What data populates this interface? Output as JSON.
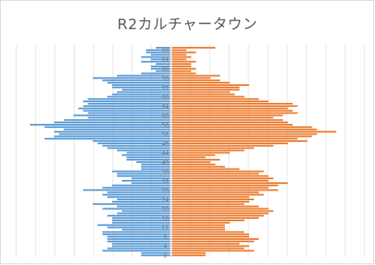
{
  "chart_data": {
    "type": "bar",
    "orientation": "horizontal",
    "layout": "population-pyramid",
    "title": "R2カルチャータウン",
    "grid": true,
    "xlim": [
      -32,
      40
    ],
    "ylim": [
      0,
      91
    ],
    "y_ticks": [
      "0",
      "4",
      "8",
      "12",
      "16",
      "20",
      "24",
      "28",
      "32",
      "36",
      "40",
      "44",
      "48",
      "52",
      "56",
      "60",
      "64",
      "68",
      "72",
      "76",
      "80",
      "84",
      "88"
    ],
    "series": [
      {
        "color": "#5b9bd5",
        "side": "left",
        "values": [
          6,
          6,
          14,
          13,
          12,
          12,
          13,
          13,
          13,
          14,
          14,
          10,
          13,
          15,
          12,
          12,
          12,
          13,
          11,
          10,
          14,
          11,
          16,
          12,
          11,
          13,
          14,
          13,
          18,
          14,
          12,
          8,
          10,
          8,
          11,
          11,
          12,
          6,
          6,
          6,
          7,
          9,
          9,
          10,
          9,
          11,
          13,
          14,
          15,
          16,
          26,
          24,
          23,
          24,
          22,
          26,
          29,
          24,
          22,
          17,
          20,
          17,
          18,
          19,
          18,
          17,
          18,
          17,
          13,
          12,
          11,
          10,
          12,
          12,
          13,
          14,
          16,
          11,
          6,
          3,
          4,
          4,
          3,
          6,
          4,
          6,
          4,
          5,
          5,
          3,
          0
        ]
      },
      {
        "color": "#ed7d31",
        "side": "right",
        "values": [
          7,
          7,
          17,
          15,
          16,
          14,
          17,
          18,
          16,
          16,
          15,
          11,
          11,
          11,
          12,
          15,
          18,
          19,
          20,
          21,
          20,
          18,
          15,
          16,
          17,
          16,
          19,
          18,
          22,
          20,
          22,
          24,
          20,
          21,
          20,
          18,
          19,
          14,
          11,
          9,
          8,
          10,
          7,
          9,
          12,
          15,
          17,
          21,
          24,
          28,
          26,
          29,
          30,
          34,
          30,
          29,
          25,
          24,
          23,
          21,
          23,
          26,
          25,
          24,
          26,
          25,
          20,
          18,
          15,
          13,
          12,
          14,
          14,
          16,
          12,
          10,
          8,
          10,
          5,
          4,
          5,
          4,
          4,
          5,
          3,
          4,
          3,
          5,
          3,
          9,
          0
        ]
      }
    ]
  }
}
